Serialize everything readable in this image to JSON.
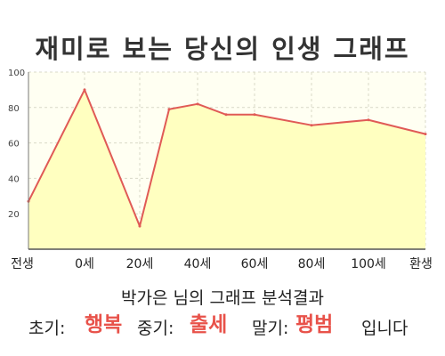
{
  "title": "재미로 보는 당신의 인생 그래프",
  "subtitle": "박가은 님의 그래프 분석결과",
  "result": {
    "early_label": "초기:",
    "early_value": "행복",
    "mid_label": "중기:",
    "mid_value": "출세",
    "late_label": "말기:",
    "late_value": "평범",
    "ending": "입니다"
  },
  "colors": {
    "line": "#e05a56",
    "fill": "#ffffc0",
    "plot_bg": "#fffff2",
    "grid": "#d9d9c8",
    "accent_text": "#e8524a"
  },
  "chart_data": {
    "type": "area",
    "title": "재미로 보는 당신의 인생 그래프",
    "xlabel": "",
    "ylabel": "",
    "ylim": [
      0,
      100
    ],
    "y_ticks": [
      20,
      40,
      60,
      80,
      100
    ],
    "x_tick_labels": [
      "전생",
      "0세",
      "20세",
      "40세",
      "60세",
      "80세",
      "100세",
      "환생"
    ],
    "grid": true,
    "series": [
      {
        "x": [
          "전생",
          "0세",
          "20세",
          "~30세",
          "40세",
          "~50세",
          "60세",
          "80세",
          "100세",
          "환생"
        ],
        "values": [
          27,
          90,
          13,
          79,
          82,
          76,
          76,
          70,
          73,
          65
        ]
      }
    ]
  }
}
